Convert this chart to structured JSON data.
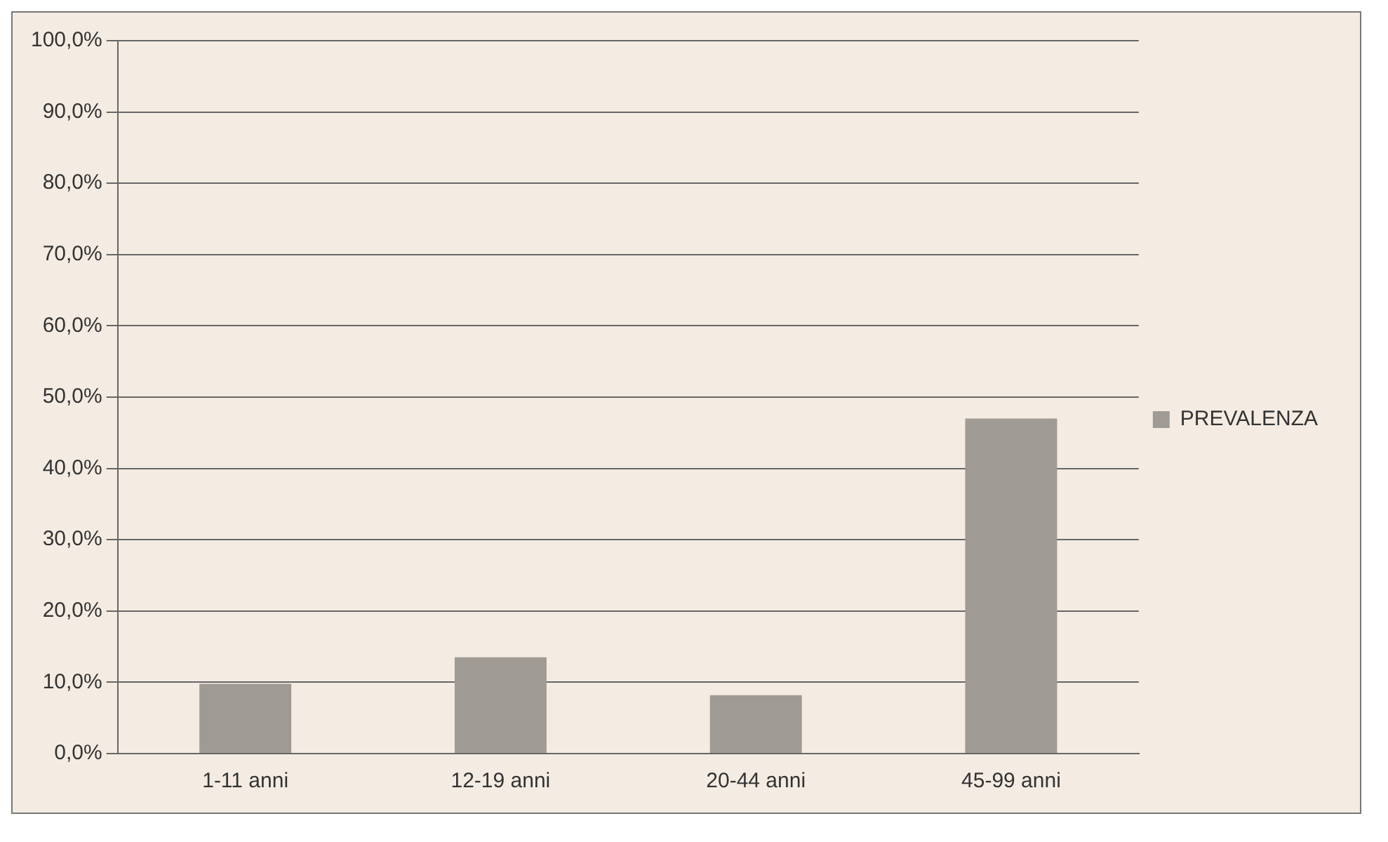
{
  "chart_data": {
    "type": "bar",
    "categories": [
      "1-11 anni",
      "12-19 anni",
      "20-44 anni",
      "45-99 anni"
    ],
    "series": [
      {
        "name": "PREVALENZA",
        "color": "#a09a94",
        "values": [
          9.8,
          13.5,
          8.2,
          47
        ]
      }
    ],
    "ylim": [
      0,
      100
    ],
    "yticks": [
      {
        "value": 0,
        "label": "0,0%"
      },
      {
        "value": 10,
        "label": "10,0%"
      },
      {
        "value": 20,
        "label": "20,0%"
      },
      {
        "value": 30,
        "label": "30,0%"
      },
      {
        "value": 40,
        "label": "40,0%"
      },
      {
        "value": 50,
        "label": "50,0%"
      },
      {
        "value": 60,
        "label": "60,0%"
      },
      {
        "value": 70,
        "label": "70,0%"
      },
      {
        "value": 80,
        "label": "80,0%"
      },
      {
        "value": 90,
        "label": "90,0%"
      },
      {
        "value": 100,
        "label": "100,0%"
      }
    ],
    "grid": "y",
    "legend": "right"
  }
}
